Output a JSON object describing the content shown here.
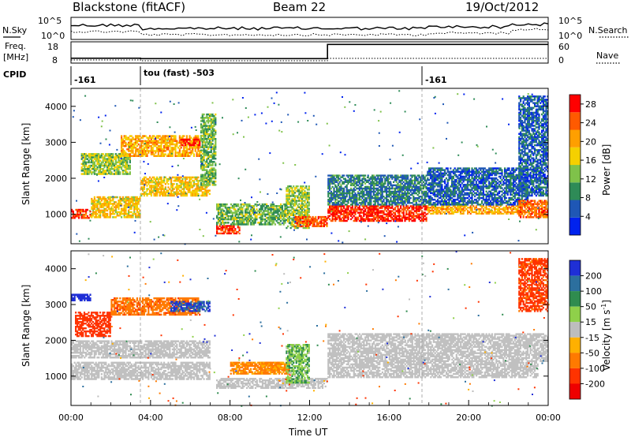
{
  "header": {
    "station": "Blackstone (fitACF)",
    "beam": "Beam 22",
    "date": "19/Oct/2012"
  },
  "summary_panel": {
    "nsky_label": "N.Sky",
    "nsearch_label": "N.Search",
    "freq_label_line1": "Freq.",
    "freq_label_line2": "[MHz]",
    "nave_label": "Nave",
    "cpid_label": "CPID",
    "noise_ticks": [
      "10^5",
      "10^0"
    ],
    "freq_ticks": [
      "18",
      "8"
    ],
    "nave_ticks": [
      "60",
      "0"
    ],
    "cpid_segments": [
      {
        "label": "-161",
        "start_hour": 0.0,
        "end_hour": 3.5
      },
      {
        "label": "tou (fast) -503",
        "start_hour": 3.5,
        "end_hour": 17.9
      },
      {
        "label": "-161",
        "start_hour": 17.9,
        "end_hour": 24.0
      }
    ],
    "freq_steps": [
      {
        "start_hour": 0.0,
        "mhz": 10.5
      },
      {
        "start_hour": 3.5,
        "mhz": 10.3
      },
      {
        "start_hour": 12.9,
        "mhz": 17.5
      },
      {
        "start_hour": 17.9,
        "mhz": 17.5
      }
    ]
  },
  "colors": {
    "power_scale": [
      "#0022ee",
      "#1f57b5",
      "#2e8b57",
      "#7fc24a",
      "#f5d000",
      "#ff9f00",
      "#ff5a00",
      "#ff0000"
    ],
    "velocity_scale": [
      "#1f2fd6",
      "#2c6f9e",
      "#2f8c4f",
      "#8fd04a",
      "#bdbdbd",
      "#ffb000",
      "#ff7a00",
      "#ff3300",
      "#ee0000"
    ],
    "ground_scatter": "#c0c0c0"
  },
  "chart_data": [
    {
      "type": "heatmap",
      "name": "power",
      "ylabel": "Slant Range [km]",
      "ylim": [
        180,
        4500
      ],
      "xlim": [
        0,
        24
      ],
      "y_ticks": [
        1000,
        2000,
        3000,
        4000
      ],
      "colorbar_label": "Power [dB]",
      "colorbar_ticks": [
        4,
        8,
        12,
        16,
        20,
        24,
        28
      ],
      "colorbar_range": [
        0,
        30
      ],
      "bands": [
        {
          "t0": 0.0,
          "t1": 1.0,
          "r0": 880,
          "r1": 1150,
          "value": 26
        },
        {
          "t0": 1.0,
          "t1": 3.5,
          "r0": 900,
          "r1": 1500,
          "value": 18
        },
        {
          "t0": 3.5,
          "t1": 7.0,
          "r0": 1500,
          "r1": 2050,
          "value": 18
        },
        {
          "t0": 0.5,
          "t1": 3.0,
          "r0": 2100,
          "r1": 2700,
          "value": 14
        },
        {
          "t0": 2.5,
          "t1": 6.5,
          "r0": 2600,
          "r1": 3200,
          "value": 20
        },
        {
          "t0": 5.5,
          "t1": 6.5,
          "r0": 2900,
          "r1": 3100,
          "value": 28
        },
        {
          "t0": 6.5,
          "t1": 7.3,
          "r0": 1800,
          "r1": 3800,
          "value": 12
        },
        {
          "t0": 7.3,
          "t1": 8.5,
          "r0": 450,
          "r1": 700,
          "value": 27
        },
        {
          "t0": 7.3,
          "t1": 10.8,
          "r0": 700,
          "r1": 1300,
          "value": 12
        },
        {
          "t0": 10.8,
          "t1": 12.0,
          "r0": 600,
          "r1": 1800,
          "value": 14
        },
        {
          "t0": 11.2,
          "t1": 12.9,
          "r0": 650,
          "r1": 950,
          "value": 24
        },
        {
          "t0": 12.9,
          "t1": 17.9,
          "r0": 800,
          "r1": 1250,
          "value": 27
        },
        {
          "t0": 12.9,
          "t1": 17.9,
          "r0": 1250,
          "r1": 2100,
          "value": 8
        },
        {
          "t0": 17.9,
          "t1": 22.5,
          "r0": 1000,
          "r1": 1250,
          "value": 20
        },
        {
          "t0": 17.9,
          "t1": 23.0,
          "r0": 1250,
          "r1": 2300,
          "value": 6
        },
        {
          "t0": 22.5,
          "t1": 24.0,
          "r0": 900,
          "r1": 1400,
          "value": 24
        },
        {
          "t0": 22.5,
          "t1": 24.0,
          "r0": 1500,
          "r1": 4300,
          "value": 6
        }
      ]
    },
    {
      "type": "heatmap",
      "name": "velocity",
      "ylabel": "Slant Range [km]",
      "xlabel": "Time UT",
      "ylim": [
        180,
        4500
      ],
      "xlim": [
        0,
        24
      ],
      "y_ticks": [
        1000,
        2000,
        3000,
        4000
      ],
      "x_ticks": [
        "00:00",
        "04:00",
        "08:00",
        "12:00",
        "16:00",
        "20:00",
        "00:00"
      ],
      "colorbar_label": "Velocity [m s^-1]",
      "colorbar_ticks": [
        200,
        100,
        50,
        15,
        -15,
        -50,
        -100,
        -200
      ],
      "bands": [
        {
          "t0": 0.0,
          "t1": 7.0,
          "r0": 900,
          "r1": 1400,
          "value": 0,
          "ground": true
        },
        {
          "t0": 0.0,
          "t1": 7.0,
          "r0": 1500,
          "r1": 2000,
          "value": 0,
          "ground": true
        },
        {
          "t0": 0.2,
          "t1": 2.0,
          "r0": 2100,
          "r1": 2800,
          "value": -150
        },
        {
          "t0": 2.0,
          "t1": 6.5,
          "r0": 2700,
          "r1": 3200,
          "value": -80
        },
        {
          "t0": 5.0,
          "t1": 7.0,
          "r0": 2800,
          "r1": 3100,
          "value": 150
        },
        {
          "t0": 0.0,
          "t1": 1.0,
          "r0": 3100,
          "r1": 3300,
          "value": 200
        },
        {
          "t0": 7.3,
          "t1": 12.9,
          "r0": 650,
          "r1": 950,
          "value": 0,
          "ground": true
        },
        {
          "t0": 8.0,
          "t1": 11.0,
          "r0": 1050,
          "r1": 1400,
          "value": -60
        },
        {
          "t0": 9.5,
          "t1": 11.0,
          "r0": 1150,
          "r1": 1400,
          "value": -60
        },
        {
          "t0": 10.8,
          "t1": 12.0,
          "r0": 800,
          "r1": 1900,
          "value": 40
        },
        {
          "t0": 12.9,
          "t1": 23.5,
          "r0": 950,
          "r1": 1400,
          "value": 0,
          "ground": true
        },
        {
          "t0": 12.9,
          "t1": 24.0,
          "r0": 1400,
          "r1": 2200,
          "value": 0,
          "ground": true
        },
        {
          "t0": 22.5,
          "t1": 24.0,
          "r0": 2800,
          "r1": 4300,
          "value": -120
        }
      ]
    }
  ],
  "axes": {
    "ylabel": "Slant Range [km]",
    "xlabel": "Time UT",
    "power_cb_label": "Power [dB]",
    "vel_cb_label": "Velocity [m s",
    "vel_cb_sup": "-1",
    "vel_cb_close": "]"
  }
}
